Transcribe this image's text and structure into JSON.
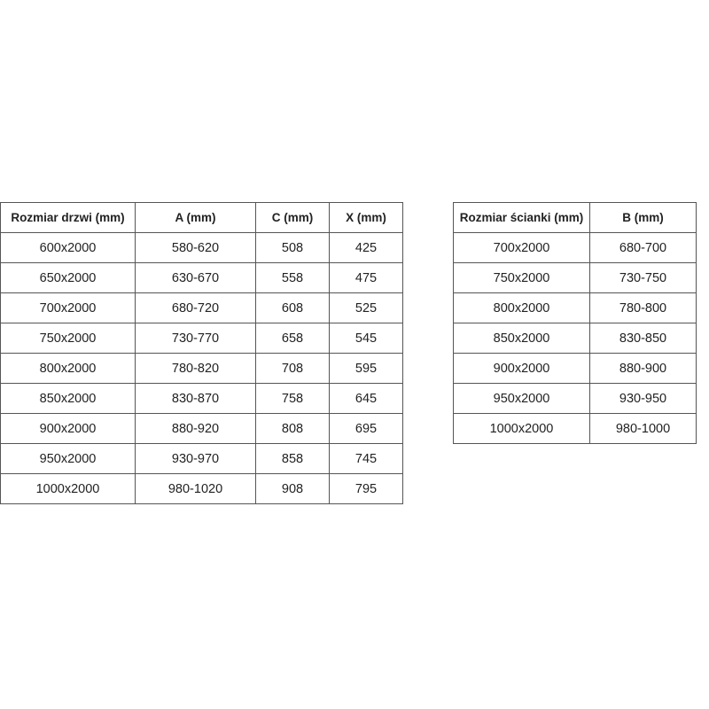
{
  "door_table": {
    "headers": [
      "Rozmiar drzwi (mm)",
      "A (mm)",
      "C (mm)",
      "X (mm)"
    ],
    "rows": [
      [
        "600x2000",
        "580-620",
        "508",
        "425"
      ],
      [
        "650x2000",
        "630-670",
        "558",
        "475"
      ],
      [
        "700x2000",
        "680-720",
        "608",
        "525"
      ],
      [
        "750x2000",
        "730-770",
        "658",
        "545"
      ],
      [
        "800x2000",
        "780-820",
        "708",
        "595"
      ],
      [
        "850x2000",
        "830-870",
        "758",
        "645"
      ],
      [
        "900x2000",
        "880-920",
        "808",
        "695"
      ],
      [
        "950x2000",
        "930-970",
        "858",
        "745"
      ],
      [
        "1000x2000",
        "980-1020",
        "908",
        "795"
      ]
    ]
  },
  "panel_table": {
    "headers": [
      "Rozmiar ścianki (mm)",
      "B (mm)"
    ],
    "rows": [
      [
        "700x2000",
        "680-700"
      ],
      [
        "750x2000",
        "730-750"
      ],
      [
        "800x2000",
        "780-800"
      ],
      [
        "850x2000",
        "830-850"
      ],
      [
        "900x2000",
        "880-900"
      ],
      [
        "950x2000",
        "930-950"
      ],
      [
        "1000x2000",
        "980-1000"
      ]
    ]
  }
}
